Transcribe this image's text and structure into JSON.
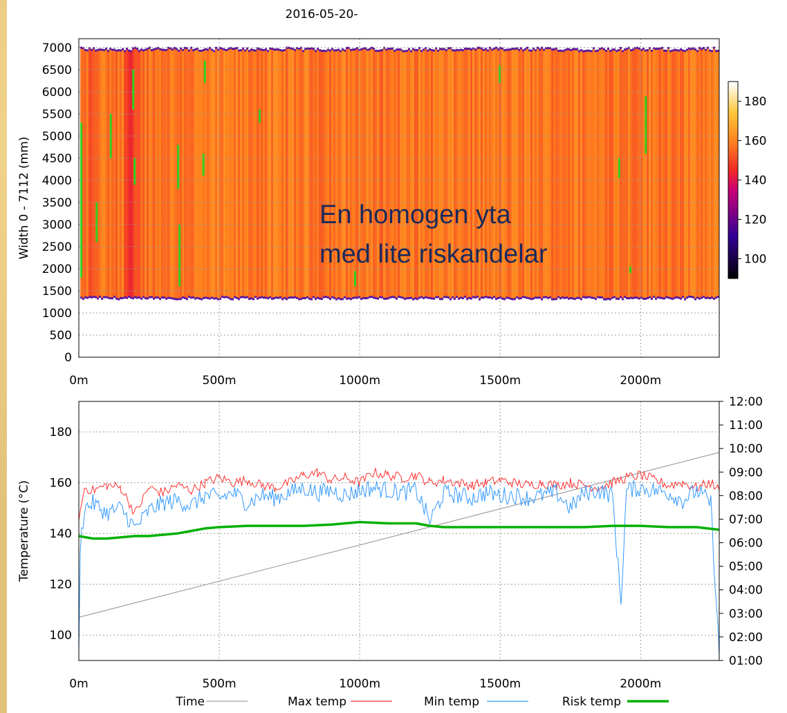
{
  "chart_data": [
    {
      "type": "heatmap",
      "title": "2016-05-20-",
      "ylabel": "Width 0 - 7112 (mm)",
      "xlabel": "",
      "xlim": [
        0,
        2280
      ],
      "ylim": [
        0,
        7200
      ],
      "x_ticks": [
        "0m",
        "500m",
        "1000m",
        "1500m",
        "2000m"
      ],
      "y_ticks": [
        "0",
        "500",
        "1000",
        "1500",
        "2000",
        "2500",
        "3000",
        "3500",
        "4000",
        "4500",
        "5000",
        "5500",
        "6000",
        "6500",
        "7000"
      ],
      "colorbar": {
        "min": 90,
        "max": 190,
        "ticks": [
          "100",
          "120",
          "140",
          "160",
          "180"
        ]
      },
      "mat_edges": {
        "bottom_mm": 1330,
        "top_mm": 6980
      },
      "dominant_temperature": 158,
      "hot_spots_green": [
        {
          "x_m": 5,
          "y_mm": [
            1800,
            5300
          ]
        },
        {
          "x_m": 60,
          "y_mm": [
            2600,
            3500
          ]
        },
        {
          "x_m": 110,
          "y_mm": [
            4500,
            5500
          ]
        },
        {
          "x_m": 190,
          "y_mm": [
            5600,
            6500
          ]
        },
        {
          "x_m": 195,
          "y_mm": [
            3900,
            4500
          ]
        },
        {
          "x_m": 350,
          "y_mm": [
            3800,
            4800
          ]
        },
        {
          "x_m": 355,
          "y_mm": [
            1600,
            3000
          ]
        },
        {
          "x_m": 440,
          "y_mm": [
            4100,
            4600
          ]
        },
        {
          "x_m": 445,
          "y_mm": [
            6200,
            6700
          ]
        },
        {
          "x_m": 640,
          "y_mm": [
            5300,
            5600
          ]
        },
        {
          "x_m": 980,
          "y_mm": [
            1600,
            1950
          ]
        },
        {
          "x_m": 1495,
          "y_mm": [
            6200,
            6600
          ]
        },
        {
          "x_m": 1920,
          "y_mm": [
            4050,
            4500
          ]
        },
        {
          "x_m": 2015,
          "y_mm": [
            4600,
            5900
          ]
        },
        {
          "x_m": 1960,
          "y_mm": [
            1900,
            2050
          ]
        }
      ],
      "annotation": [
        "En homogen yta",
        "med lite riskandelar"
      ]
    },
    {
      "type": "line",
      "ylabel": "Temperature (°C)",
      "xlim": [
        0,
        2280
      ],
      "ylim": [
        90,
        192
      ],
      "x_ticks": [
        "0m",
        "500m",
        "1000m",
        "1500m",
        "2000m"
      ],
      "y_ticks": [
        "100",
        "120",
        "140",
        "160",
        "180"
      ],
      "y2_ticks": [
        "01:00",
        "02:00",
        "03:00",
        "04:00",
        "05:00",
        "06:00",
        "07:00",
        "08:00",
        "09:00",
        "10:00",
        "11:00",
        "12:00"
      ],
      "series": [
        {
          "name": "Time",
          "color": "#a0a0a0",
          "x": [
            0,
            2280
          ],
          "y": [
            "02:50",
            "09:50"
          ]
        },
        {
          "name": "Max temp",
          "color": "#ff3030",
          "x": [
            0,
            20,
            50,
            100,
            150,
            200,
            250,
            300,
            350,
            400,
            450,
            500,
            550,
            600,
            650,
            700,
            750,
            800,
            850,
            900,
            950,
            1000,
            1050,
            1100,
            1150,
            1200,
            1250,
            1300,
            1350,
            1400,
            1450,
            1500,
            1550,
            1600,
            1650,
            1700,
            1750,
            1800,
            1850,
            1900,
            1950,
            2000,
            2050,
            2100,
            2150,
            2200,
            2250,
            2280
          ],
          "y": [
            145,
            158,
            157,
            159,
            158,
            148,
            158,
            156,
            159,
            157,
            160,
            162,
            160,
            161,
            159,
            158,
            160,
            163,
            164,
            161,
            162,
            160,
            164,
            163,
            162,
            163,
            160,
            161,
            160,
            159,
            160,
            161,
            160,
            159,
            160,
            159,
            160,
            159,
            158,
            160,
            162,
            163,
            161,
            159,
            160,
            158,
            160,
            157
          ]
        },
        {
          "name": "Min temp",
          "color": "#3399ff",
          "x": [
            0,
            5,
            20,
            50,
            100,
            150,
            200,
            250,
            300,
            350,
            400,
            450,
            500,
            550,
            600,
            650,
            700,
            750,
            800,
            850,
            900,
            950,
            1000,
            1050,
            1100,
            1150,
            1200,
            1250,
            1300,
            1350,
            1400,
            1450,
            1500,
            1550,
            1600,
            1650,
            1700,
            1750,
            1800,
            1850,
            1900,
            1930,
            1950,
            2000,
            2050,
            2100,
            2150,
            2200,
            2250,
            2280
          ],
          "y": [
            92,
            135,
            150,
            152,
            148,
            150,
            142,
            149,
            152,
            153,
            151,
            155,
            154,
            156,
            152,
            155,
            154,
            156,
            158,
            156,
            157,
            155,
            157,
            158,
            157,
            156,
            157,
            145,
            156,
            155,
            154,
            156,
            155,
            155,
            154,
            155,
            156,
            150,
            156,
            157,
            155,
            113,
            157,
            158,
            157,
            156,
            153,
            157,
            152,
            92
          ]
        },
        {
          "name": "Risk temp",
          "color": "#00b000",
          "x": [
            0,
            50,
            100,
            150,
            200,
            250,
            300,
            350,
            400,
            450,
            500,
            600,
            700,
            800,
            900,
            1000,
            1100,
            1200,
            1250,
            1300,
            1400,
            1500,
            1600,
            1700,
            1800,
            1900,
            2000,
            2100,
            2200,
            2280
          ],
          "y": [
            139,
            138,
            138,
            138.5,
            139,
            139,
            139.5,
            140,
            141,
            142,
            142.5,
            143,
            143,
            143,
            143.5,
            144.5,
            144,
            144,
            143,
            142.5,
            142.5,
            142.5,
            142.5,
            142.5,
            142.5,
            143,
            143,
            142.5,
            142.5,
            141.5
          ]
        }
      ]
    }
  ]
}
